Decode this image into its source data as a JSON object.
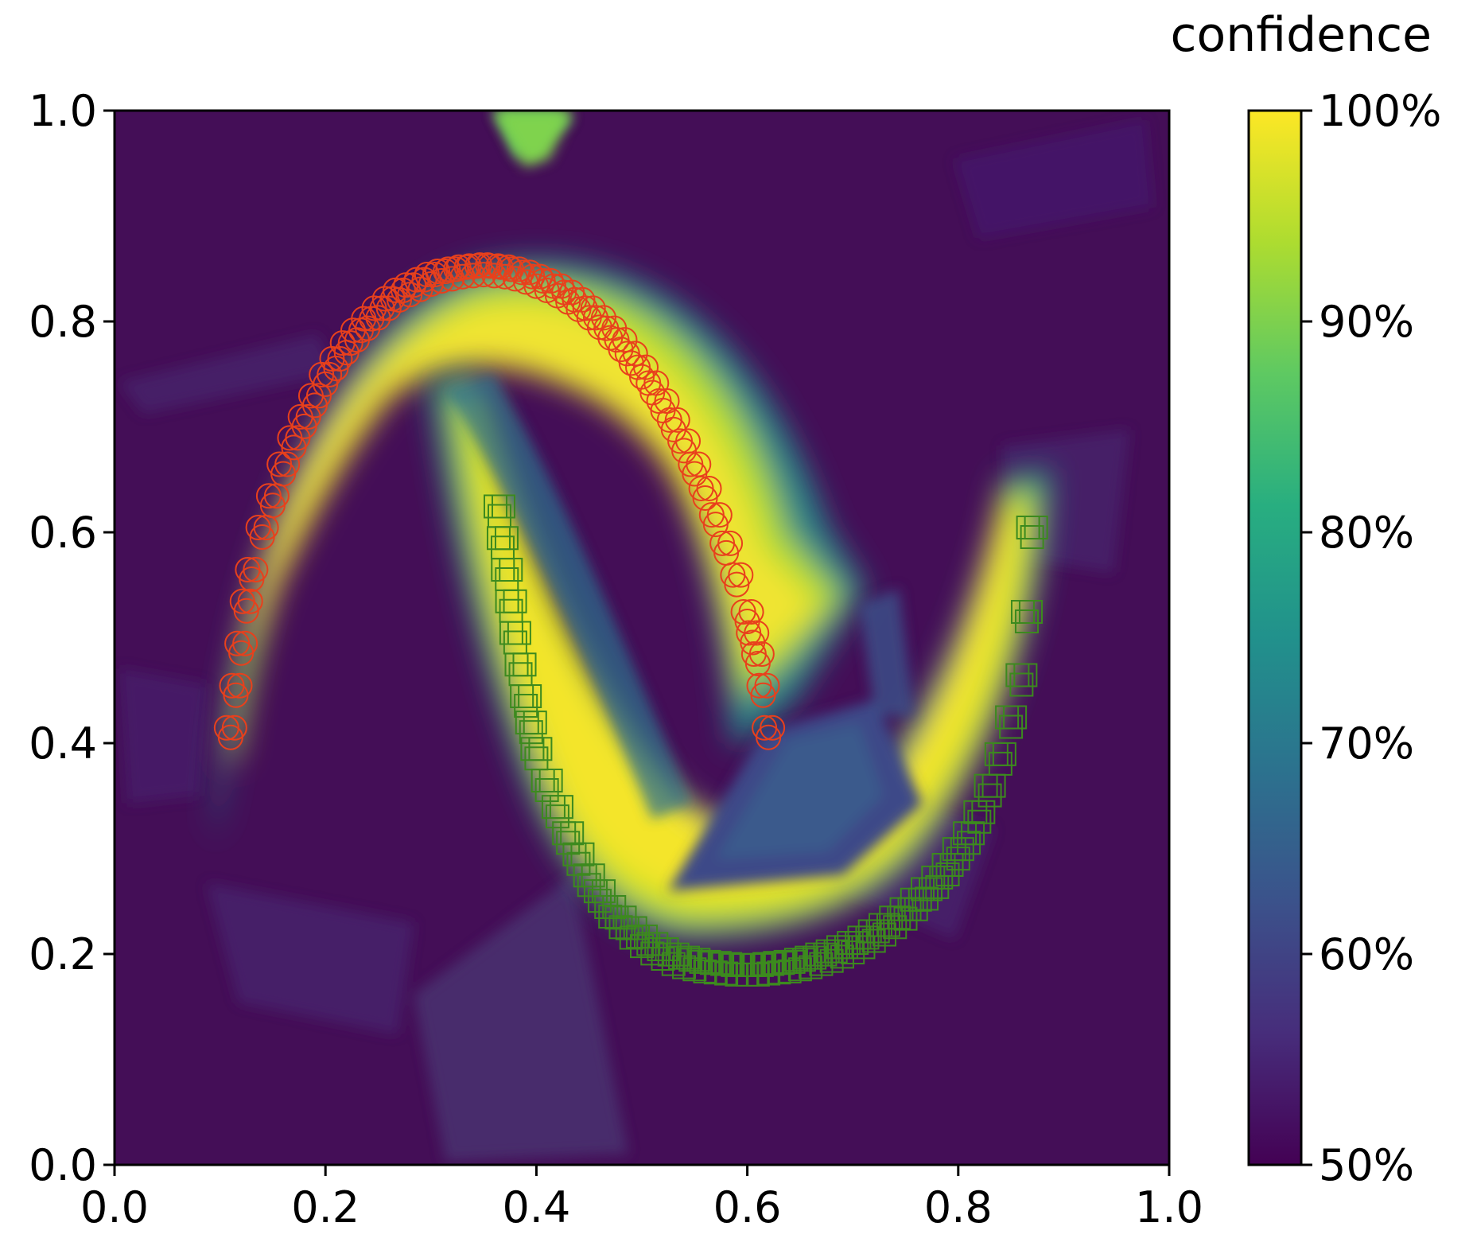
{
  "chart_data": {
    "type": "heatmap",
    "title": "",
    "xlabel": "",
    "ylabel": "",
    "xlim": [
      0.0,
      1.0
    ],
    "ylim": [
      0.0,
      1.0
    ],
    "x_ticks": [
      "0.0",
      "0.2",
      "0.4",
      "0.6",
      "0.8",
      "1.0"
    ],
    "y_ticks": [
      "0.0",
      "0.2",
      "0.4",
      "0.6",
      "0.8",
      "1.0"
    ],
    "grid": false,
    "legend": null,
    "colormap": "viridis",
    "colorbar": {
      "title": "confidence",
      "range": [
        0.5,
        1.0
      ],
      "ticks": [
        {
          "value": 0.5,
          "label": "50%"
        },
        {
          "value": 0.6,
          "label": "60%"
        },
        {
          "value": 0.7,
          "label": "70%"
        },
        {
          "value": 0.8,
          "label": "80%"
        },
        {
          "value": 0.9,
          "label": "90%"
        },
        {
          "value": 1.0,
          "label": "100%"
        }
      ]
    },
    "colors": {
      "viridis_low": "#440154",
      "viridis_high": "#fde725",
      "circle_class": "#e8401c",
      "square_class": "#3c8a1e"
    },
    "series": [
      {
        "marker": "circle",
        "color": "#e8401c",
        "x": [
          0.11,
          0.115,
          0.12,
          0.125,
          0.13,
          0.14,
          0.15,
          0.16,
          0.17,
          0.18,
          0.19,
          0.2,
          0.21,
          0.22,
          0.23,
          0.24,
          0.25,
          0.26,
          0.27,
          0.28,
          0.29,
          0.3,
          0.31,
          0.32,
          0.33,
          0.34,
          0.35,
          0.36,
          0.37,
          0.38,
          0.39,
          0.4,
          0.41,
          0.42,
          0.43,
          0.44,
          0.45,
          0.46,
          0.47,
          0.48,
          0.49,
          0.5,
          0.51,
          0.52,
          0.53,
          0.54,
          0.55,
          0.56,
          0.57,
          0.58,
          0.59,
          0.6,
          0.605,
          0.61,
          0.615,
          0.62
        ],
        "y": [
          0.41,
          0.45,
          0.49,
          0.53,
          0.56,
          0.6,
          0.63,
          0.66,
          0.685,
          0.705,
          0.725,
          0.745,
          0.76,
          0.775,
          0.787,
          0.798,
          0.808,
          0.817,
          0.825,
          0.83,
          0.835,
          0.84,
          0.843,
          0.845,
          0.847,
          0.848,
          0.849,
          0.848,
          0.847,
          0.845,
          0.842,
          0.838,
          0.834,
          0.829,
          0.823,
          0.816,
          0.808,
          0.799,
          0.789,
          0.778,
          0.765,
          0.752,
          0.737,
          0.72,
          0.702,
          0.682,
          0.66,
          0.637,
          0.612,
          0.585,
          0.555,
          0.52,
          0.5,
          0.48,
          0.45,
          0.41
        ]
      },
      {
        "marker": "square",
        "color": "#3c8a1e",
        "x": [
          0.365,
          0.368,
          0.372,
          0.376,
          0.38,
          0.385,
          0.39,
          0.395,
          0.4,
          0.41,
          0.42,
          0.43,
          0.44,
          0.45,
          0.46,
          0.47,
          0.48,
          0.49,
          0.5,
          0.51,
          0.52,
          0.53,
          0.54,
          0.55,
          0.56,
          0.57,
          0.58,
          0.59,
          0.6,
          0.61,
          0.62,
          0.63,
          0.64,
          0.65,
          0.66,
          0.67,
          0.68,
          0.69,
          0.7,
          0.71,
          0.72,
          0.73,
          0.74,
          0.75,
          0.76,
          0.77,
          0.78,
          0.79,
          0.8,
          0.81,
          0.82,
          0.83,
          0.84,
          0.85,
          0.86,
          0.865,
          0.87
        ],
        "y": [
          0.62,
          0.59,
          0.56,
          0.53,
          0.5,
          0.47,
          0.44,
          0.415,
          0.39,
          0.36,
          0.335,
          0.31,
          0.29,
          0.27,
          0.255,
          0.24,
          0.23,
          0.22,
          0.212,
          0.205,
          0.2,
          0.195,
          0.192,
          0.19,
          0.188,
          0.187,
          0.186,
          0.185,
          0.185,
          0.185,
          0.186,
          0.187,
          0.188,
          0.19,
          0.192,
          0.195,
          0.198,
          0.202,
          0.206,
          0.211,
          0.217,
          0.223,
          0.23,
          0.238,
          0.247,
          0.257,
          0.268,
          0.28,
          0.295,
          0.31,
          0.33,
          0.355,
          0.385,
          0.42,
          0.46,
          0.52,
          0.6
        ]
      }
    ]
  }
}
